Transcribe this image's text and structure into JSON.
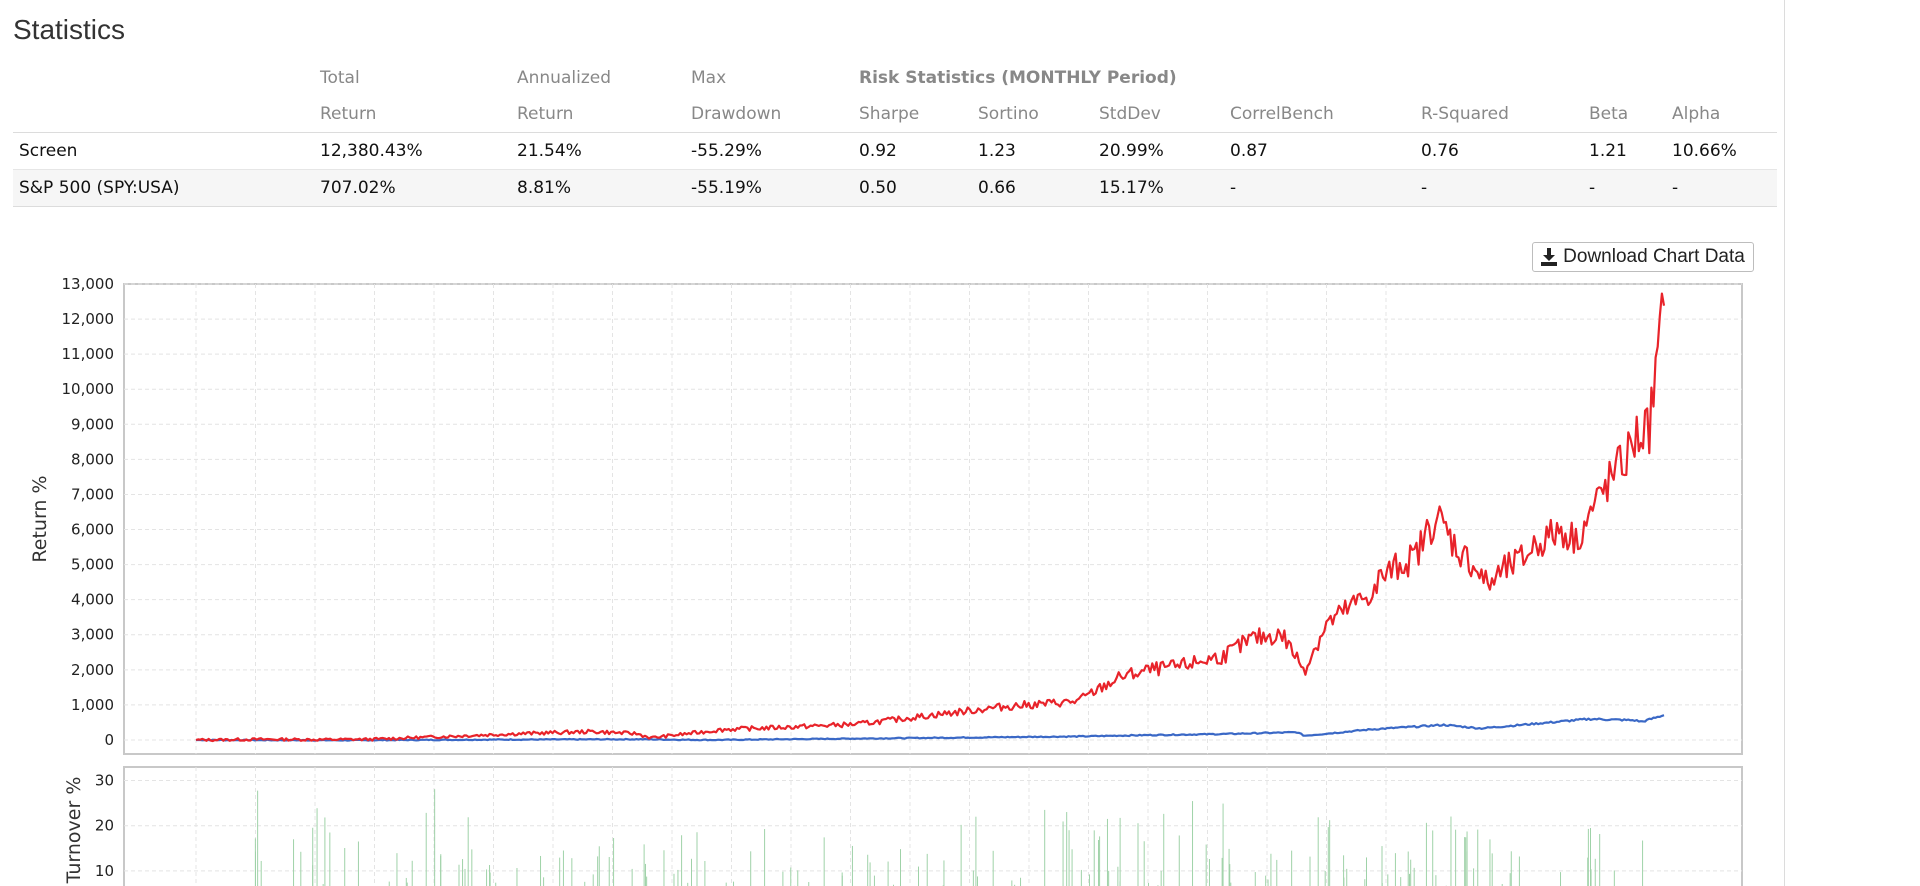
{
  "section_title": "Statistics",
  "table": {
    "header_top": [
      "Total",
      "Annualized",
      "Max",
      "Risk Statistics (MONTHLY Period)"
    ],
    "header_bottom": [
      "Return",
      "Return",
      "Drawdown",
      "Sharpe",
      "Sortino",
      "StdDev",
      "CorrelBench",
      "R-Squared",
      "Beta",
      "Alpha"
    ],
    "rows": [
      {
        "name": "Screen",
        "total": "12,380.43%",
        "annualized": "21.54%",
        "drawdown": "-55.29%",
        "sharpe": "0.92",
        "sortino": "1.23",
        "stddev": "20.99%",
        "correl": "0.87",
        "rsq": "0.76",
        "beta": "1.21",
        "alpha": "10.66%"
      },
      {
        "name": "S&P 500 (SPY:USA)",
        "total": "707.02%",
        "annualized": "8.81%",
        "drawdown": "-55.19%",
        "sharpe": "0.50",
        "sortino": "0.66",
        "stddev": "15.17%",
        "correl": "-",
        "rsq": "-",
        "beta": "-",
        "alpha": "-"
      }
    ]
  },
  "download_button": {
    "label": "Download Chart Data",
    "icon": "download-icon"
  },
  "colors": {
    "screen": "#e8232a",
    "benchmark": "#3a68c6",
    "turnover": "#9fd2a8",
    "negative": "#c0282d"
  },
  "chart_data": [
    {
      "type": "line",
      "ylabel": "Return %",
      "ylim": [
        -400,
        13000
      ],
      "yticks": [
        "0",
        "1,000",
        "2,000",
        "3,000",
        "4,000",
        "5,000",
        "6,000",
        "7,000",
        "8,000",
        "9,000",
        "10,000",
        "11,000",
        "12,000",
        "13,000"
      ],
      "ytick_values": [
        0,
        1000,
        2000,
        3000,
        4000,
        5000,
        6000,
        7000,
        8000,
        9000,
        10000,
        11000,
        12000,
        13000
      ],
      "grid": true,
      "series": [
        {
          "key": "screen",
          "x": [
            0,
            0.05,
            0.08,
            0.12,
            0.17,
            0.22,
            0.27,
            0.3,
            0.31,
            0.36,
            0.4,
            0.45,
            0.5,
            0.55,
            0.6,
            0.63,
            0.65,
            0.67,
            0.7,
            0.72,
            0.74,
            0.755,
            0.77,
            0.79,
            0.805,
            0.8,
            0.82,
            0.83,
            0.845,
            0.86,
            0.87,
            0.88,
            0.89,
            0.905,
            0.91,
            0.93,
            0.94,
            0.96,
            0.975,
            0.98,
            0.99,
            1.0
          ],
          "values": [
            0,
            20,
            10,
            20,
            100,
            180,
            240,
            180,
            60,
            300,
            360,
            450,
            700,
            950,
            1100,
            1800,
            2000,
            2100,
            2400,
            2900,
            3000,
            2000,
            3300,
            3900,
            4300,
            4400,
            5000,
            5200,
            6400,
            5400,
            5000,
            4400,
            4800,
            5200,
            5500,
            6000,
            5700,
            7200,
            8100,
            8600,
            8900,
            12380
          ]
        },
        {
          "key": "benchmark",
          "x": [
            0,
            0.1,
            0.2,
            0.3,
            0.35,
            0.4,
            0.5,
            0.6,
            0.65,
            0.7,
            0.75,
            0.755,
            0.8,
            0.85,
            0.875,
            0.9,
            0.95,
            0.98,
            0.985,
            1.0
          ],
          "values": [
            0,
            -10,
            10,
            20,
            0,
            20,
            60,
            100,
            140,
            170,
            220,
            120,
            300,
            430,
            330,
            420,
            600,
            560,
            520,
            707
          ]
        }
      ]
    },
    {
      "type": "bar",
      "ylabel": "Turnover %",
      "yticks": [
        "10",
        "20",
        "30"
      ],
      "ytick_values": [
        10,
        20,
        30
      ],
      "grid": true
    }
  ]
}
